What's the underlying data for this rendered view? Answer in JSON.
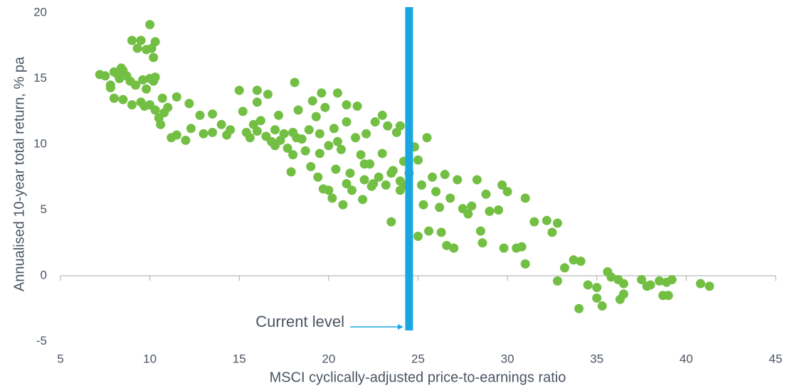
{
  "chart_data": {
    "type": "scatter",
    "x_label": "MSCI cyclically-adjusted price-to-earnings ratio",
    "y_label": "Annualised 10-year total return, % pa",
    "annotation": {
      "label": "Current level",
      "value": 24.5
    },
    "color": "#72bf44",
    "line_color": "#1aa6e0",
    "xlim": [
      5,
      45
    ],
    "ylim": [
      -5,
      20
    ],
    "xticks": [
      5,
      10,
      15,
      20,
      25,
      30,
      35,
      40,
      45
    ],
    "yticks": [
      -5,
      0,
      5,
      10,
      15,
      20
    ],
    "x": [
      7.2,
      7.5,
      7.8,
      7.8,
      8,
      8.2,
      8.3,
      8.4,
      8.5,
      8.7,
      8.9,
      8,
      8.5,
      9,
      9.3,
      9.5,
      9.8,
      10,
      10.1,
      10.2,
      10.3,
      9,
      9.2,
      9.5,
      9.6,
      9.8,
      10,
      10.2,
      10.3,
      9.7,
      10,
      10.3,
      10.5,
      10.6,
      10.7,
      10.8,
      11,
      11.2,
      11.5,
      11.5,
      12,
      12.2,
      12.3,
      12.8,
      13,
      13.5,
      13.5,
      14,
      14.3,
      14.5,
      15,
      15.2,
      15.4,
      15.6,
      15.8,
      16,
      16,
      16.2,
      16.5,
      16.6,
      16.8,
      17,
      17.2,
      17.3,
      17.5,
      17.7,
      17.9,
      18,
      18.1,
      18.2,
      18.3,
      18.5,
      18.7,
      18.9,
      19,
      19.1,
      19.3,
      19.4,
      19.5,
      19.6,
      19.7,
      19.8,
      20,
      20,
      20.2,
      20.3,
      20.4,
      20.5,
      20.7,
      20.8,
      21,
      21,
      21.2,
      21.3,
      21.5,
      21.6,
      21.8,
      21.9,
      22,
      22.1,
      22.3,
      22.4,
      22.6,
      22.8,
      23,
      23,
      23.2,
      23.3,
      23.5,
      23.6,
      23.8,
      24,
      24,
      24.2,
      24.3,
      24.5,
      24.8,
      25,
      25,
      25.2,
      25.3,
      25.5,
      25.6,
      25.8,
      26,
      26.2,
      26.3,
      26.5,
      26.6,
      26.8,
      27,
      27.2,
      27.5,
      27.8,
      28,
      28.3,
      28.5,
      28.6,
      28.8,
      29,
      29.5,
      29.7,
      29.8,
      30,
      30.5,
      30.8,
      31,
      31,
      31.5,
      32.2,
      32.5,
      32.8,
      32.8,
      33.2,
      33.7,
      34,
      34.1,
      34.5,
      35,
      35,
      35.3,
      35.6,
      35.8,
      36.2,
      36.3,
      36.5,
      36.5,
      37.5,
      37.8,
      38,
      38.5,
      38.7,
      39,
      38.9,
      39.2,
      40.8,
      41.3,
      22.5,
      23.5,
      24,
      21,
      22,
      20.5,
      19.5,
      17,
      16,
      18
    ],
    "values": [
      15.3,
      15.2,
      14.3,
      14.5,
      15.5,
      15.3,
      15,
      15.8,
      15.6,
      15.2,
      14.8,
      13.5,
      13.4,
      17.9,
      17.3,
      17.9,
      17.2,
      19.1,
      17.3,
      16.6,
      17.8,
      13,
      14.5,
      13.2,
      14.9,
      14.2,
      15,
      14.8,
      15.1,
      12.9,
      13,
      12.6,
      12,
      11.5,
      13.5,
      12.4,
      12.8,
      10.5,
      10.7,
      13.6,
      10.3,
      13.1,
      11.2,
      12.2,
      10.8,
      12.3,
      10.9,
      11.5,
      10.7,
      11.1,
      14.1,
      12.5,
      10.9,
      10.5,
      11.5,
      14.1,
      13.2,
      11.8,
      10.6,
      13.8,
      10.2,
      11.1,
      12.2,
      10.3,
      10.8,
      9.7,
      7.9,
      9.2,
      14.7,
      10.5,
      12.6,
      10.4,
      9.5,
      11.1,
      8.3,
      13.3,
      12.1,
      7.5,
      9.3,
      13.9,
      6.6,
      12.8,
      9.9,
      6.5,
      5.9,
      11.2,
      8.1,
      13.9,
      9.6,
      5.4,
      11.7,
      13,
      7.8,
      6.5,
      10.5,
      12.9,
      9.2,
      5.8,
      7.3,
      10.8,
      8.5,
      6.8,
      11.7,
      7.5,
      12.2,
      9.3,
      6.9,
      11.4,
      4.1,
      8,
      10.9,
      7.2,
      11.4,
      8.7,
      6.9,
      7.8,
      9.8,
      3,
      8.8,
      6.9,
      5.4,
      10.5,
      3.4,
      7.5,
      6.4,
      5.2,
      3.3,
      7.7,
      2.3,
      5.9,
      2.1,
      7.3,
      5.1,
      4.7,
      5.3,
      7.3,
      3.4,
      2.5,
      6.2,
      4.9,
      5,
      6.9,
      2.1,
      6.4,
      2.1,
      2.2,
      5.9,
      0.9,
      4.1,
      4.2,
      3.3,
      4,
      -0.4,
      0.6,
      1.2,
      -2.5,
      1.1,
      -0.7,
      -1.7,
      -0.9,
      -2.3,
      0.3,
      -0.1,
      -0.3,
      -1.8,
      -1.4,
      -0.6,
      -0.3,
      -0.8,
      -0.7,
      -0.4,
      -1.5,
      -1.5,
      -0.5,
      -0.3,
      -0.6,
      -0.8,
      7,
      7.8,
      6.5,
      7,
      8.5,
      10.2,
      10.8,
      9.9,
      11,
      10.9
    ]
  }
}
